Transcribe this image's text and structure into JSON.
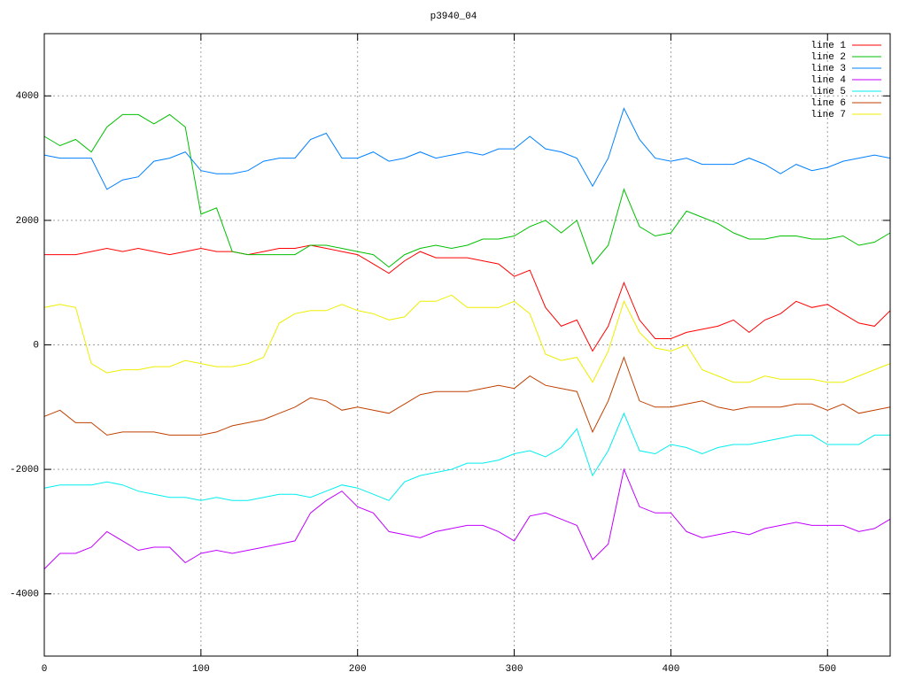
{
  "chart_data": {
    "type": "line",
    "title": "p3940_04",
    "x": [
      0,
      10,
      20,
      30,
      40,
      50,
      60,
      70,
      80,
      90,
      100,
      110,
      120,
      130,
      140,
      150,
      160,
      170,
      180,
      190,
      200,
      210,
      220,
      230,
      240,
      250,
      260,
      270,
      280,
      290,
      300,
      310,
      320,
      330,
      340,
      350,
      360,
      370,
      380,
      390,
      400,
      410,
      420,
      430,
      440,
      450,
      460,
      470,
      480,
      490,
      500,
      510,
      520,
      530,
      540
    ],
    "series": [
      {
        "name": "line 1",
        "color": "#ff0000",
        "values": [
          1450,
          1450,
          1450,
          1500,
          1550,
          1500,
          1550,
          1500,
          1450,
          1500,
          1550,
          1500,
          1500,
          1450,
          1500,
          1550,
          1550,
          1600,
          1550,
          1500,
          1450,
          1300,
          1150,
          1350,
          1500,
          1400,
          1400,
          1400,
          1350,
          1300,
          1100,
          1200,
          600,
          300,
          400,
          -100,
          300,
          1000,
          400,
          100,
          100,
          200,
          250,
          300,
          400,
          200,
          400,
          500,
          700,
          600,
          650,
          500,
          350,
          300,
          550
        ]
      },
      {
        "name": "line 2",
        "color": "#00c000",
        "values": [
          3350,
          3200,
          3300,
          3100,
          3500,
          3700,
          3700,
          3550,
          3700,
          3500,
          2100,
          2200,
          1500,
          1450,
          1450,
          1450,
          1450,
          1600,
          1600,
          1550,
          1500,
          1450,
          1250,
          1450,
          1550,
          1600,
          1550,
          1600,
          1700,
          1700,
          1750,
          1900,
          2000,
          1800,
          2000,
          1300,
          1600,
          2500,
          1900,
          1750,
          1800,
          2150,
          2050,
          1950,
          1800,
          1700,
          1700,
          1750,
          1750,
          1700,
          1700,
          1750,
          1600,
          1650,
          1800
        ]
      },
      {
        "name": "line 3",
        "color": "#0080ff",
        "values": [
          3050,
          3000,
          3000,
          3000,
          2500,
          2650,
          2700,
          2950,
          3000,
          3100,
          2800,
          2750,
          2750,
          2800,
          2950,
          3000,
          3000,
          3300,
          3400,
          3000,
          3000,
          3100,
          2950,
          3000,
          3100,
          3000,
          3050,
          3100,
          3050,
          3150,
          3150,
          3350,
          3150,
          3100,
          3000,
          2550,
          3000,
          3800,
          3300,
          3000,
          2950,
          3000,
          2900,
          2900,
          2900,
          3000,
          2900,
          2750,
          2900,
          2800,
          2850,
          2950,
          3000,
          3050,
          3000
        ]
      },
      {
        "name": "line 4",
        "color": "#c000ff",
        "values": [
          -3600,
          -3350,
          -3350,
          -3250,
          -3000,
          -3150,
          -3300,
          -3250,
          -3250,
          -3500,
          -3350,
          -3300,
          -3350,
          -3300,
          -3250,
          -3200,
          -3150,
          -2700,
          -2500,
          -2350,
          -2600,
          -2700,
          -3000,
          -3050,
          -3100,
          -3000,
          -2950,
          -2900,
          -2900,
          -3000,
          -3150,
          -2750,
          -2700,
          -2800,
          -2900,
          -3450,
          -3200,
          -2000,
          -2600,
          -2700,
          -2700,
          -3000,
          -3100,
          -3050,
          -3000,
          -3050,
          -2950,
          -2900,
          -2850,
          -2900,
          -2900,
          -2900,
          -3000,
          -2950,
          -2800
        ]
      },
      {
        "name": "line 5",
        "color": "#00eeee",
        "values": [
          -2300,
          -2250,
          -2250,
          -2250,
          -2200,
          -2250,
          -2350,
          -2400,
          -2450,
          -2450,
          -2500,
          -2450,
          -2500,
          -2500,
          -2450,
          -2400,
          -2400,
          -2450,
          -2350,
          -2250,
          -2300,
          -2400,
          -2500,
          -2200,
          -2100,
          -2050,
          -2000,
          -1900,
          -1900,
          -1850,
          -1750,
          -1700,
          -1800,
          -1650,
          -1350,
          -2100,
          -1700,
          -1100,
          -1700,
          -1750,
          -1600,
          -1650,
          -1750,
          -1650,
          -1600,
          -1600,
          -1550,
          -1500,
          -1450,
          -1450,
          -1600,
          -1600,
          -1600,
          -1450,
          -1450
        ]
      },
      {
        "name": "line 6",
        "color": "#c04000",
        "values": [
          -1150,
          -1050,
          -1250,
          -1250,
          -1450,
          -1400,
          -1400,
          -1400,
          -1450,
          -1450,
          -1450,
          -1400,
          -1300,
          -1250,
          -1200,
          -1100,
          -1000,
          -850,
          -900,
          -1050,
          -1000,
          -1050,
          -1100,
          -950,
          -800,
          -750,
          -750,
          -750,
          -700,
          -650,
          -700,
          -500,
          -650,
          -700,
          -750,
          -1400,
          -900,
          -200,
          -900,
          -1000,
          -1000,
          -950,
          -900,
          -1000,
          -1050,
          -1000,
          -1000,
          -1000,
          -950,
          -950,
          -1050,
          -950,
          -1100,
          -1050,
          -1000
        ]
      },
      {
        "name": "line 7",
        "color": "#eeee00",
        "values": [
          600,
          650,
          600,
          -300,
          -450,
          -400,
          -400,
          -350,
          -350,
          -250,
          -300,
          -350,
          -350,
          -300,
          -200,
          350,
          500,
          550,
          550,
          650,
          550,
          500,
          400,
          450,
          700,
          700,
          800,
          600,
          600,
          600,
          700,
          500,
          -150,
          -250,
          -200,
          -600,
          -100,
          700,
          200,
          -50,
          -100,
          0,
          -400,
          -500,
          -600,
          -600,
          -500,
          -550,
          -550,
          -550,
          -600,
          -600,
          -500,
          -400,
          -300
        ]
      }
    ],
    "xlim": [
      0,
      540
    ],
    "ylim": [
      -5000,
      5000
    ],
    "xticks": [
      0,
      100,
      200,
      300,
      400,
      500
    ],
    "yticks": [
      -4000,
      -2000,
      0,
      2000,
      4000
    ],
    "grid": true,
    "legend": "top-right"
  }
}
